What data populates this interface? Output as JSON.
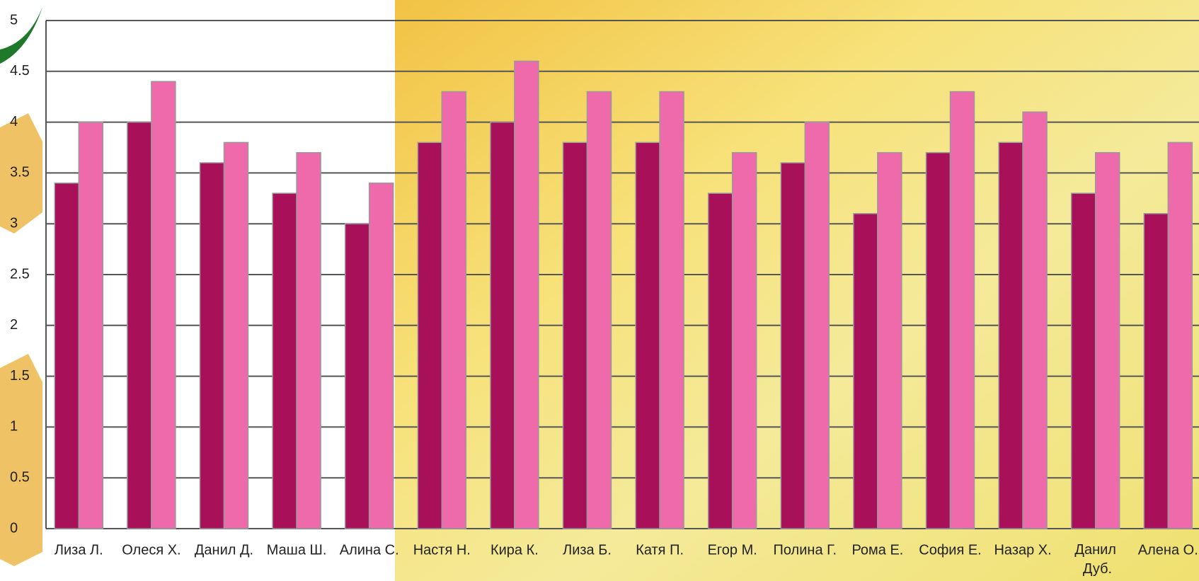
{
  "chart_data": {
    "type": "bar",
    "categories": [
      "Лиза Л.",
      "Олеся Х.",
      "Данил Д.",
      "Маша Ш.",
      "Алина С.",
      "Настя Н.",
      "Кира К.",
      "Лиза Б.",
      "Катя П.",
      "Егор М.",
      "Полина Г.",
      "Рома Е.",
      "София Е.",
      "Назар Х.",
      "Данил Дуб.",
      "Алена О."
    ],
    "series": [
      {
        "color": "#a8105a",
        "values": [
          3.4,
          4.0,
          3.6,
          3.3,
          3.0,
          3.8,
          4.0,
          3.8,
          3.8,
          3.3,
          3.6,
          3.1,
          3.7,
          3.8,
          3.3,
          3.1
        ]
      },
      {
        "color": "#ef6aab",
        "values": [
          4.0,
          4.4,
          3.8,
          3.7,
          3.4,
          4.3,
          4.6,
          4.3,
          4.3,
          3.7,
          4.0,
          3.7,
          4.3,
          4.1,
          3.7,
          3.8
        ]
      }
    ],
    "ylim": [
      0,
      5
    ],
    "yticks": [
      0,
      0.5,
      1,
      1.5,
      2,
      2.5,
      3,
      3.5,
      4,
      4.5,
      5
    ],
    "grid": true
  }
}
